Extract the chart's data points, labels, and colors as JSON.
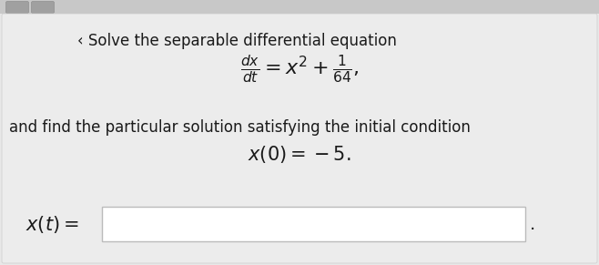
{
  "bg_color": "#e8e8e8",
  "panel_color": "#ebebeb",
  "top_strip_color": "#c8c8c8",
  "text_color": "#1a1a1a",
  "title_text": "‹ Solve the separable differential equation",
  "line2_text": "and find the particular solution satisfying the initial condition",
  "eq_main": "$\\frac{dx}{dt} = x^2 + \\frac{1}{64},$",
  "line3_text": "$x(0) = -5.$",
  "label_text": "$x(t) =$",
  "input_box_color": "#ffffff",
  "input_box_edge": "#bbbbbb",
  "font_size_title": 12,
  "font_size_eq": 16,
  "font_size_label": 15,
  "font_size_body": 12,
  "sq1_color": "#b0b0b0",
  "sq2_color": "#b8b8b8"
}
